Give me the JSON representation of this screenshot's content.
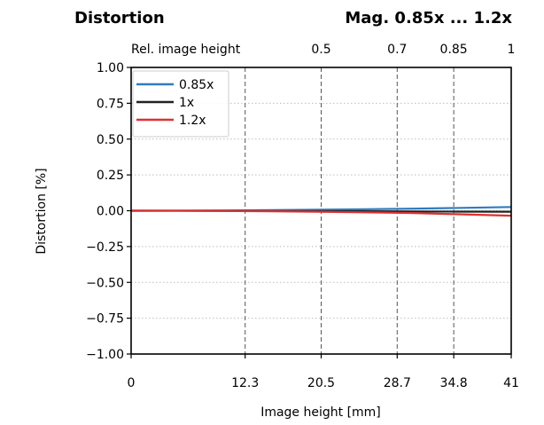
{
  "header": {
    "left": "Distortion",
    "right": "Mag. 0.85x ... 1.2x"
  },
  "chart_data": {
    "type": "line",
    "xlabel": "Image height [mm]",
    "ylabel": "Distortion [%]",
    "top_axis_label": "Rel. image height",
    "xlim": [
      0,
      41
    ],
    "ylim": [
      -1.0,
      1.0
    ],
    "x_ticks": [
      {
        "value": 0,
        "label": "0"
      },
      {
        "value": 12.3,
        "label": "12.3"
      },
      {
        "value": 20.5,
        "label": "20.5"
      },
      {
        "value": 28.7,
        "label": "28.7"
      },
      {
        "value": 34.8,
        "label": "34.8"
      },
      {
        "value": 41,
        "label": "41"
      }
    ],
    "top_ticks": [
      {
        "value": 20.5,
        "label": "0.5"
      },
      {
        "value": 28.7,
        "label": "0.7"
      },
      {
        "value": 34.8,
        "label": "0.85"
      },
      {
        "value": 41,
        "label": "1"
      }
    ],
    "y_ticks": [
      {
        "value": 1.0,
        "label": "1.00"
      },
      {
        "value": 0.75,
        "label": "0.75"
      },
      {
        "value": 0.5,
        "label": "0.50"
      },
      {
        "value": 0.25,
        "label": "0.25"
      },
      {
        "value": 0.0,
        "label": "0.00"
      },
      {
        "value": -0.25,
        "label": "−0.25"
      },
      {
        "value": -0.5,
        "label": "−0.50"
      },
      {
        "value": -0.75,
        "label": "−0.75"
      },
      {
        "value": -1.0,
        "label": "−1.00"
      }
    ],
    "vertical_dashed_lines": [
      12.3,
      20.5,
      28.7,
      34.8
    ],
    "grid": "horizontal dotted",
    "legend_position": "top-left",
    "series": [
      {
        "name": "0.85x",
        "color": "#2f7bbf",
        "x": [
          0,
          5,
          10,
          15,
          20,
          25,
          30,
          35,
          41
        ],
        "y": [
          0,
          0.0005,
          0.002,
          0.004,
          0.007,
          0.01,
          0.014,
          0.019,
          0.026
        ]
      },
      {
        "name": "1x",
        "color": "#222222",
        "x": [
          0,
          5,
          10,
          15,
          20,
          25,
          30,
          35,
          41
        ],
        "y": [
          0,
          0.0,
          -0.001,
          -0.002,
          -0.003,
          -0.004,
          -0.005,
          -0.006,
          -0.007
        ]
      },
      {
        "name": "1.2x",
        "color": "#e03030",
        "x": [
          0,
          5,
          10,
          15,
          20,
          25,
          30,
          35,
          41
        ],
        "y": [
          0,
          -0.0005,
          -0.002,
          -0.004,
          -0.007,
          -0.011,
          -0.016,
          -0.024,
          -0.035
        ]
      }
    ]
  }
}
